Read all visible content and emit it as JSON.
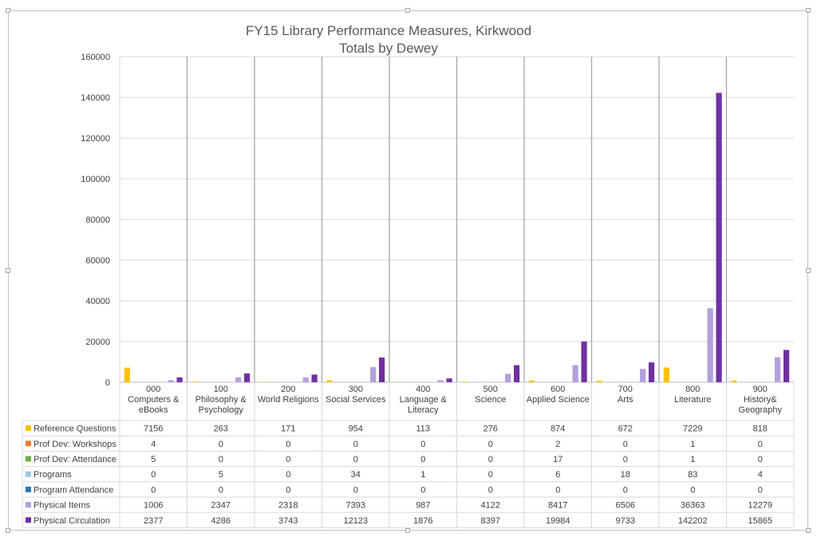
{
  "chart_data": {
    "type": "bar",
    "title": "FY15 Library Performance Measures, Kirkwood",
    "subtitle": "Totals by Dewey",
    "ylim": [
      0,
      160000
    ],
    "yticks": [
      0,
      20000,
      40000,
      60000,
      80000,
      100000,
      120000,
      140000,
      160000
    ],
    "grid": true,
    "legend": "data-table",
    "categories": [
      [
        "000",
        "Computers &",
        "eBooks"
      ],
      [
        "100",
        "Philosophy &",
        "Psychology"
      ],
      [
        "200",
        "World Religions"
      ],
      [
        "300",
        "Social Services"
      ],
      [
        "400",
        "Language &",
        "Literacy"
      ],
      [
        "500",
        "Science"
      ],
      [
        "600",
        "Applied Science"
      ],
      [
        "700",
        "Arts"
      ],
      [
        "800",
        "Literature"
      ],
      [
        "900",
        "History&",
        "Geography"
      ]
    ],
    "series": [
      {
        "name": "Reference Questions",
        "color": "#FFC000",
        "values": [
          7156,
          263,
          171,
          954,
          113,
          276,
          874,
          672,
          7229,
          818
        ]
      },
      {
        "name": "Prof Dev: Workshops",
        "color": "#ED7D31",
        "values": [
          4,
          0,
          0,
          0,
          0,
          0,
          2,
          0,
          1,
          0
        ]
      },
      {
        "name": "Prof Dev: Attendance",
        "color": "#70AD47",
        "values": [
          5,
          0,
          0,
          0,
          0,
          0,
          17,
          0,
          1,
          0
        ]
      },
      {
        "name": "Programs",
        "color": "#9DC3E6",
        "values": [
          0,
          5,
          0,
          34,
          1,
          0,
          6,
          18,
          83,
          4
        ]
      },
      {
        "name": "Program Attendance",
        "color": "#2E75B6",
        "values": [
          0,
          0,
          0,
          0,
          0,
          0,
          0,
          0,
          0,
          0
        ]
      },
      {
        "name": "Physical Items",
        "color": "#B4A0DC",
        "values": [
          1006,
          2347,
          2318,
          7393,
          987,
          4122,
          8417,
          6506,
          36363,
          12279
        ]
      },
      {
        "name": "Physical Circulation",
        "color": "#7030A0",
        "values": [
          2377,
          4286,
          3743,
          12123,
          1876,
          8397,
          19984,
          9733,
          142202,
          15865
        ]
      }
    ]
  }
}
